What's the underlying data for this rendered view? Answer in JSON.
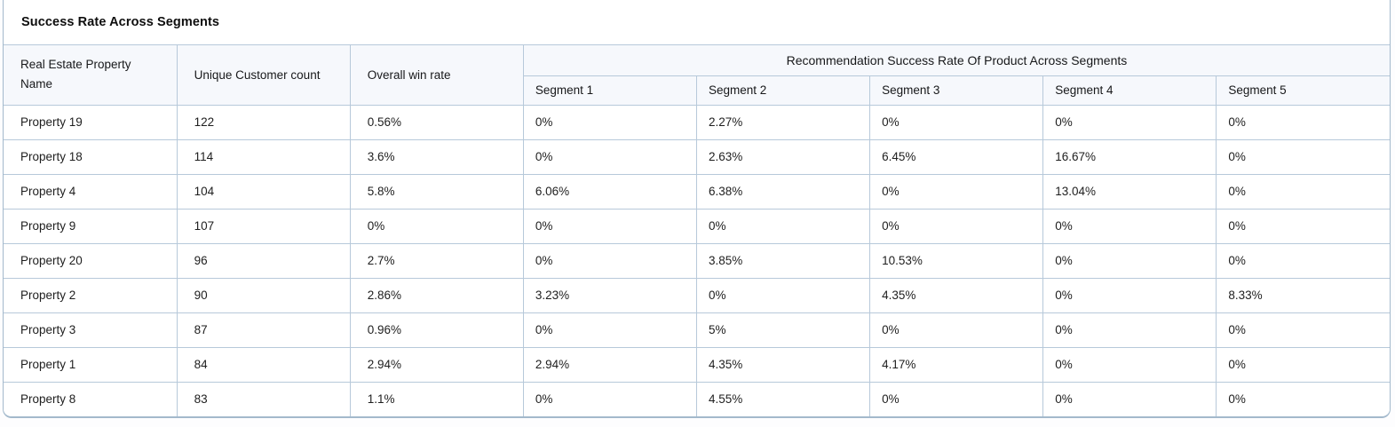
{
  "widget": {
    "title": "Success Rate Across Segments"
  },
  "table": {
    "left_columns": [
      "Real Estate Property Name",
      "Unique Customer count",
      "Overall win rate"
    ],
    "group_header": "Recommendation Success Rate Of Product Across Segments",
    "segment_columns": [
      "Segment 1",
      "Segment 2",
      "Segment 3",
      "Segment 4",
      "Segment 5"
    ]
  },
  "chart_data": {
    "type": "table",
    "title": "Success Rate Across Segments",
    "columns": [
      "Real Estate Property Name",
      "Unique Customer count",
      "Overall win rate",
      "Segment 1",
      "Segment 2",
      "Segment 3",
      "Segment 4",
      "Segment 5"
    ],
    "group_header": {
      "label": "Recommendation Success Rate Of Product Across Segments",
      "spans": [
        "Segment 1",
        "Segment 2",
        "Segment 3",
        "Segment 4",
        "Segment 5"
      ]
    },
    "rows": [
      {
        "name": "Property 19",
        "unique_customer_count": "122",
        "overall_win_rate": "0.56%",
        "segments": [
          "0%",
          "2.27%",
          "0%",
          "0%",
          "0%"
        ]
      },
      {
        "name": "Property 18",
        "unique_customer_count": "114",
        "overall_win_rate": "3.6%",
        "segments": [
          "0%",
          "2.63%",
          "6.45%",
          "16.67%",
          "0%"
        ]
      },
      {
        "name": "Property 4",
        "unique_customer_count": "104",
        "overall_win_rate": "5.8%",
        "segments": [
          "6.06%",
          "6.38%",
          "0%",
          "13.04%",
          "0%"
        ]
      },
      {
        "name": "Property 9",
        "unique_customer_count": "107",
        "overall_win_rate": "0%",
        "segments": [
          "0%",
          "0%",
          "0%",
          "0%",
          "0%"
        ]
      },
      {
        "name": "Property 20",
        "unique_customer_count": "96",
        "overall_win_rate": "2.7%",
        "segments": [
          "0%",
          "3.85%",
          "10.53%",
          "0%",
          "0%"
        ]
      },
      {
        "name": "Property 2",
        "unique_customer_count": "90",
        "overall_win_rate": "2.86%",
        "segments": [
          "3.23%",
          "0%",
          "4.35%",
          "0%",
          "8.33%"
        ]
      },
      {
        "name": "Property 3",
        "unique_customer_count": "87",
        "overall_win_rate": "0.96%",
        "segments": [
          "0%",
          "5%",
          "0%",
          "0%",
          "0%"
        ]
      },
      {
        "name": "Property 1",
        "unique_customer_count": "84",
        "overall_win_rate": "2.94%",
        "segments": [
          "2.94%",
          "4.35%",
          "4.17%",
          "0%",
          "0%"
        ]
      },
      {
        "name": "Property 8",
        "unique_customer_count": "83",
        "overall_win_rate": "1.1%",
        "segments": [
          "0%",
          "4.55%",
          "0%",
          "0%",
          "0%"
        ]
      }
    ]
  },
  "colors": {
    "border_outer": "#a3b9cc",
    "border_inner": "#b7c9da",
    "header_bg": "#f6f8fc",
    "row_bg": "#ffffff",
    "text": "#1e1e1e"
  }
}
